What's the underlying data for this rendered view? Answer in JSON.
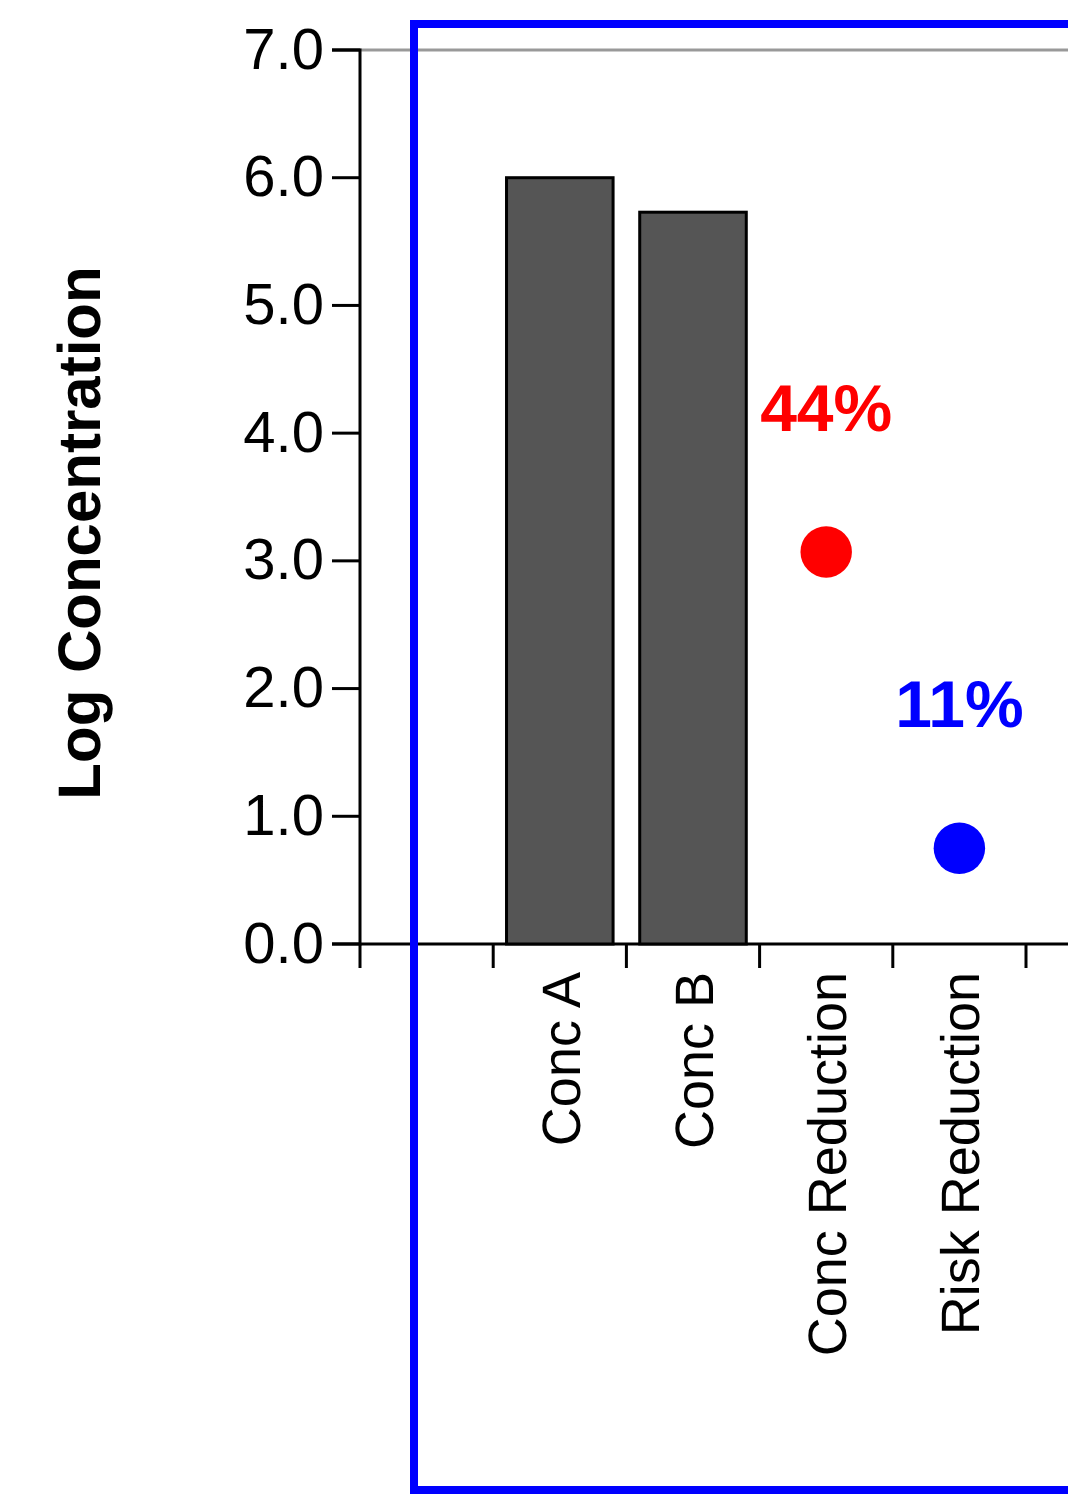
{
  "chart_data": {
    "type": "bar",
    "ylabel": "Log Concentration",
    "categories": [
      null,
      "Conc A",
      "Conc B",
      "Conc Reduction",
      "Risk Reduction"
    ],
    "series": [
      {
        "color": "#555555",
        "values": [
          null,
          6.0,
          5.73,
          null,
          null
        ]
      },
      {
        "type": "scatter",
        "color": "#ff0000",
        "values": [
          null,
          null,
          null,
          3.07,
          null
        ]
      },
      {
        "type": "scatter",
        "color": "#0000ff",
        "values": [
          null,
          null,
          null,
          null,
          0.75
        ]
      }
    ],
    "marker": "circle",
    "ylim": [
      0,
      7
    ],
    "yticks": [
      {
        "value": 0,
        "label": "0.0"
      },
      {
        "value": 1,
        "label": "1.0"
      },
      {
        "value": 2,
        "label": "2.0"
      },
      {
        "value": 3,
        "label": "3.0"
      },
      {
        "value": 4,
        "label": "4.0"
      },
      {
        "value": 5,
        "label": "5.0"
      },
      {
        "value": 6,
        "label": "6.0"
      },
      {
        "value": 7,
        "label": "7.0"
      }
    ],
    "annotations": [
      "44%",
      "11%"
    ]
  }
}
